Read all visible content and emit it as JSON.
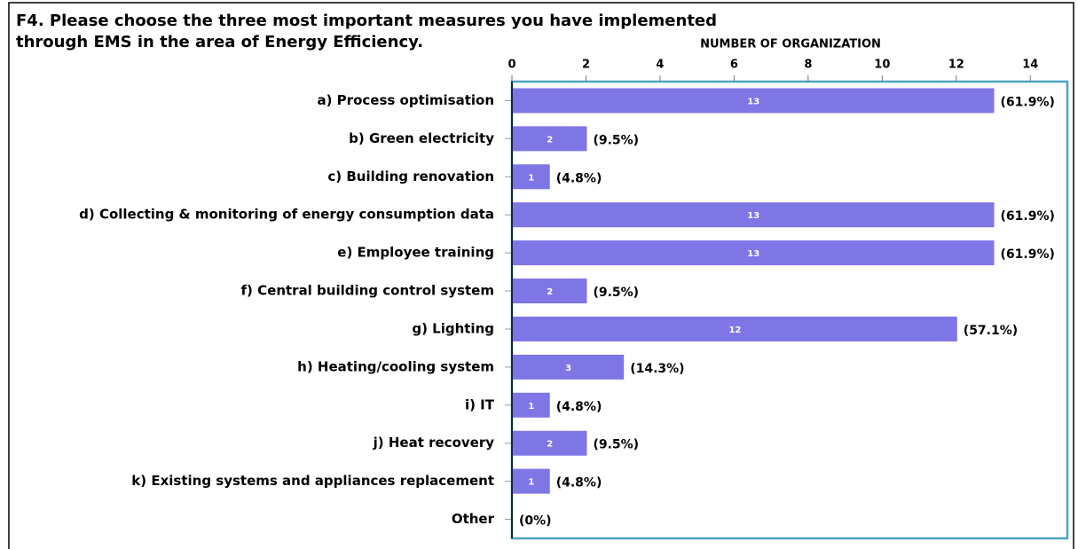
{
  "chart_data": {
    "type": "barh",
    "title": [
      "F4.  Please choose the three most important measures you have implemented",
      "through EMS in the area of Energy Efficiency."
    ],
    "x_label": "NUMBER OF ORGANIZATION",
    "categories": [
      "a) Process optimisation",
      "b) Green electricity",
      "c) Building renovation",
      "d) Collecting & monitoring of energy consumption data",
      "e) Employee training",
      "f) Central building control system",
      "g) Lighting",
      "h) Heating/cooling system",
      "i) IT",
      "j) Heat recovery",
      "k) Existing systems and appliances replacement",
      "Other"
    ],
    "values": [
      13,
      2,
      1,
      13,
      13,
      2,
      12,
      3,
      1,
      2,
      1,
      0
    ],
    "percent_labels": [
      "(61.9%)",
      "(9.5%)",
      "(4.8%)",
      "(61.9%)",
      "(61.9%)",
      "(9.5%)",
      "(57.1%)",
      "(14.3%)",
      "(4.8%)",
      "(9.5%)",
      "(4.8%)",
      "(0%)"
    ],
    "color": "#7f76e6",
    "xlim": [
      0,
      15
    ],
    "xticks": [
      0,
      2,
      4,
      6,
      8,
      10,
      12,
      14
    ]
  }
}
